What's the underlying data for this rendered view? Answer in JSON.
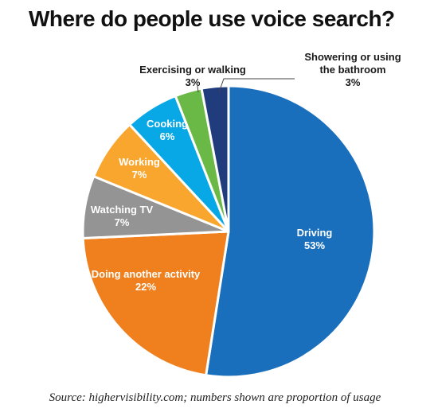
{
  "title": "Where do people use voice search?",
  "source": "Source: highervisibility.com; numbers shown are proportion of usage",
  "chart_data": {
    "type": "pie",
    "title": "Where do people use voice search?",
    "unit": "%",
    "start": "12 o'clock",
    "direction": "clockwise",
    "slices": [
      {
        "label": "Driving",
        "value": 53,
        "value_label": "53%",
        "color": "#1a6fbc",
        "label_color": "#ffffff"
      },
      {
        "label": "Doing another activity",
        "value": 22,
        "value_label": "22%",
        "color": "#f07f1d",
        "label_color": "#ffffff"
      },
      {
        "label": "Watching TV",
        "value": 7,
        "value_label": "7%",
        "color": "#949494",
        "label_color": "#ffffff"
      },
      {
        "label": "Working",
        "value": 7,
        "value_label": "7%",
        "color": "#f9a62e",
        "label_color": "#ffffff"
      },
      {
        "label": "Cooking",
        "value": 6,
        "value_label": "6%",
        "color": "#08a8e6",
        "label_color": "#ffffff"
      },
      {
        "label": "Exercising or walking",
        "value": 3,
        "value_label": "3%",
        "color": "#6ab845",
        "label_color": "#1a1a1a"
      },
      {
        "label": "Showering or using the bathroom",
        "label_lines": [
          "Showering or using",
          "the bathroom"
        ],
        "value": 3,
        "value_label": "3%",
        "color": "#213c7c",
        "label_color": "#1a1a1a"
      }
    ]
  }
}
